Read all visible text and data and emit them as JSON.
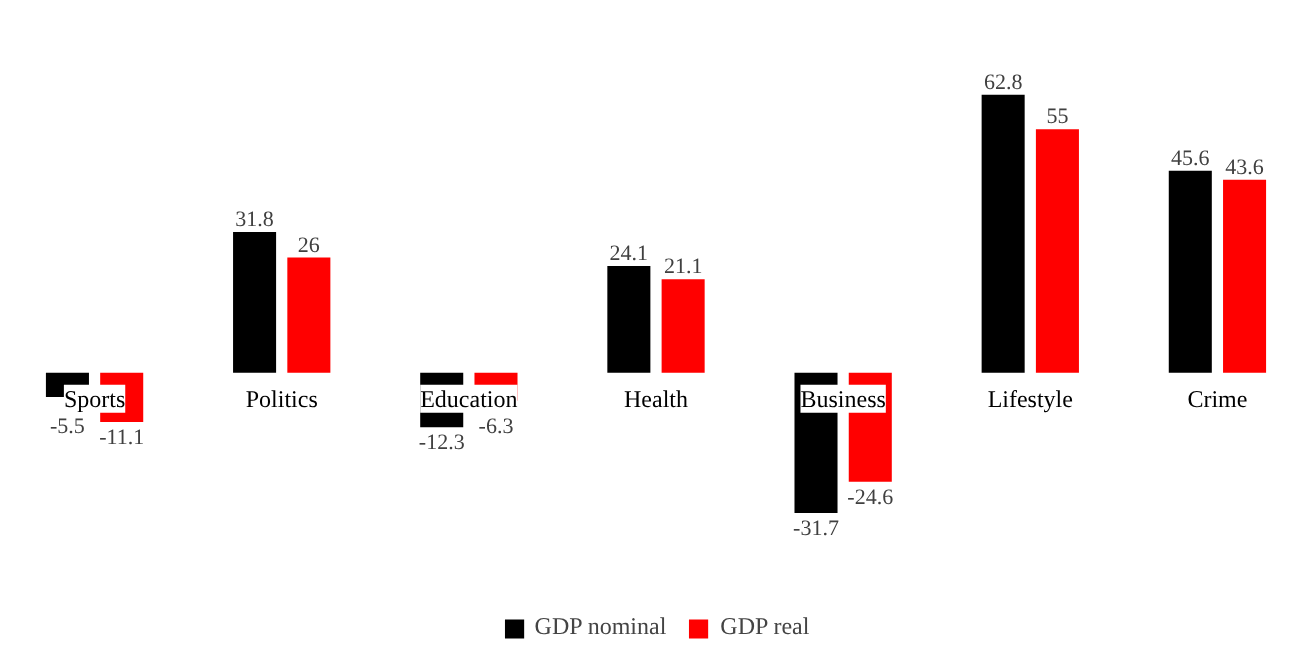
{
  "chart_data": {
    "type": "bar",
    "categories": [
      "Sports",
      "Politics",
      "Education",
      "Health",
      "Business",
      "Lifestyle",
      "Crime"
    ],
    "series": [
      {
        "name": "GDP nominal",
        "color": "#000000",
        "values": [
          -5.5,
          31.8,
          -12.3,
          24.1,
          -31.7,
          62.8,
          45.6
        ]
      },
      {
        "name": "GDP real",
        "color": "#ff0000",
        "values": [
          -11.1,
          26,
          -6.3,
          21.1,
          -24.6,
          55,
          43.6
        ]
      }
    ],
    "data_labels": true,
    "legend": "bottom",
    "grid": false
  }
}
